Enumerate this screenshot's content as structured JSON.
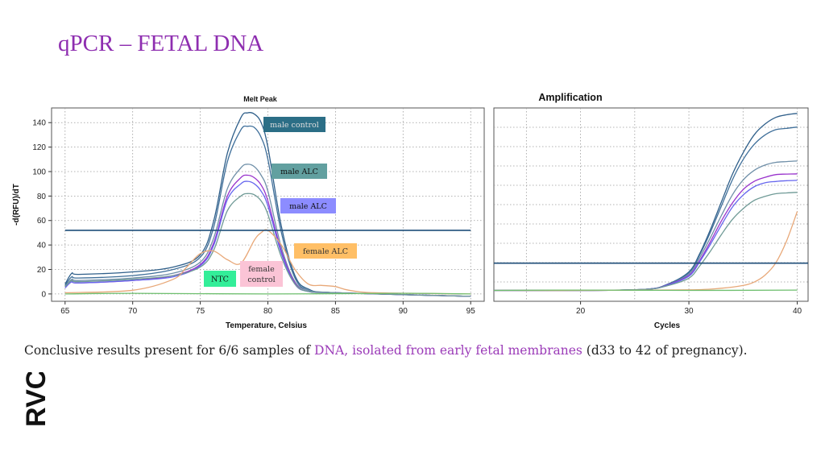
{
  "slide": {
    "title": "qPCR – FETAL DNA",
    "caption_pre": "Conclusive results present for 6/6 samples of ",
    "caption_highlight": "DNA, isolated from early fetal membranes",
    "caption_post": " (d33 to 42 of pregnancy).",
    "logo_text": "RVC",
    "accent_color": "#8e2eb0"
  },
  "chart_data": [
    {
      "type": "line",
      "title": "Melt Peak",
      "xlabel": "Temperature, Celsius",
      "ylabel": "-d(RFU)/dT",
      "xlim": [
        64,
        96
      ],
      "ylim": [
        -6,
        152
      ],
      "xticks": [
        65,
        70,
        75,
        80,
        85,
        90,
        95
      ],
      "yticks": [
        0,
        20,
        40,
        60,
        80,
        100,
        120,
        140
      ],
      "grid": true,
      "threshold": 52,
      "series": [
        {
          "color": "#2f5f8a",
          "x": [
            65,
            65.5,
            66,
            70,
            73,
            75,
            76,
            77,
            78,
            78.5,
            79,
            79.5,
            80,
            81,
            82,
            83,
            85,
            95
          ],
          "y": [
            8,
            17,
            16,
            18,
            22,
            32,
            60,
            115,
            144,
            148,
            147,
            140,
            120,
            55,
            15,
            4,
            1,
            -2
          ]
        },
        {
          "color": "#3f6f9a",
          "x": [
            65,
            65.5,
            66,
            70,
            73,
            75,
            76,
            77,
            78,
            78.5,
            79,
            79.5,
            80,
            81,
            82,
            83,
            85,
            95
          ],
          "y": [
            7,
            14,
            13,
            15,
            20,
            30,
            55,
            108,
            134,
            137,
            136,
            128,
            110,
            50,
            13,
            3,
            1,
            -2
          ]
        },
        {
          "color": "#6f8fa8",
          "x": [
            65,
            65.5,
            66,
            70,
            73,
            75,
            76,
            77,
            78,
            78.5,
            79,
            79.5,
            80,
            81,
            82,
            83,
            85,
            95
          ],
          "y": [
            6,
            12,
            11,
            13,
            17,
            26,
            46,
            86,
            103,
            106,
            104,
            97,
            84,
            38,
            10,
            3,
            1,
            -2
          ]
        },
        {
          "color": "#9933cc",
          "x": [
            65,
            65.5,
            66,
            70,
            73,
            75,
            76,
            77,
            78,
            78.5,
            79,
            79.5,
            80,
            81,
            82,
            83,
            85,
            95
          ],
          "y": [
            5,
            10,
            9,
            11,
            15,
            24,
            42,
            80,
            95,
            97,
            95,
            89,
            76,
            35,
            9,
            2,
            1,
            -2
          ]
        },
        {
          "color": "#6666ee",
          "x": [
            65,
            65.5,
            66,
            70,
            73,
            75,
            76,
            77,
            78,
            78.5,
            79,
            79.5,
            80,
            81,
            82,
            83,
            85,
            95
          ],
          "y": [
            5,
            10,
            9,
            11,
            14,
            23,
            40,
            77,
            90,
            92,
            90,
            84,
            72,
            33,
            8,
            2,
            1,
            -2
          ]
        },
        {
          "color": "#6f9a96",
          "x": [
            65,
            65.5,
            66,
            70,
            73,
            75,
            76,
            77,
            78,
            78.5,
            79,
            79.5,
            80,
            81,
            82,
            83,
            85,
            95
          ],
          "y": [
            6,
            11,
            10,
            12,
            15,
            22,
            36,
            68,
            80,
            82,
            81,
            76,
            65,
            30,
            8,
            2,
            1,
            -2
          ]
        },
        {
          "color": "#e8a878",
          "x": [
            65,
            70,
            73,
            74,
            75,
            76,
            77,
            78,
            79,
            79.5,
            80,
            81,
            82,
            83,
            84,
            85,
            86,
            88,
            95
          ],
          "y": [
            1,
            3,
            12,
            22,
            33,
            35,
            28,
            25,
            44,
            50,
            52,
            40,
            20,
            8,
            7,
            6,
            3,
            1,
            0
          ]
        },
        {
          "color": "#6fbf6f",
          "x": [
            65,
            70,
            80,
            90,
            95
          ],
          "y": [
            0,
            0.5,
            0,
            0.5,
            0
          ]
        }
      ],
      "annotations": [
        {
          "text": "male control",
          "bg": "#2b6e86",
          "fg": "#dddddd"
        },
        {
          "text": "male ALC",
          "bg": "#62a0a0",
          "fg": "#111111"
        },
        {
          "text": "male ALC",
          "bg": "#8c8cff",
          "fg": "#111111"
        },
        {
          "text": "female ALC",
          "bg": "#ffbf66",
          "fg": "#333333"
        },
        {
          "text": "female",
          "text2": "control",
          "bg": "#fbc4d6",
          "fg": "#333333"
        },
        {
          "text": "NTC",
          "bg": "#33ee99",
          "fg": "#111111"
        }
      ]
    },
    {
      "type": "line",
      "title": "Amplification",
      "xlabel": "Cycles",
      "ylabel": "",
      "xlim": [
        12,
        41
      ],
      "ylim": [
        -400,
        6700
      ],
      "xticks": [
        20,
        30,
        40
      ],
      "yticks": [],
      "grid": true,
      "threshold": 1000,
      "series": [
        {
          "color": "#2f5f8a",
          "x": [
            12,
            20,
            26,
            28,
            30,
            31,
            32,
            33,
            34,
            35,
            36,
            37,
            38,
            39,
            40
          ],
          "y": [
            0,
            0,
            40,
            220,
            680,
            1350,
            2250,
            3250,
            4250,
            5050,
            5700,
            6100,
            6350,
            6450,
            6500
          ]
        },
        {
          "color": "#3f6f9a",
          "x": [
            12,
            20,
            26,
            28,
            30,
            31,
            32,
            33,
            34,
            35,
            36,
            37,
            38,
            39,
            40
          ],
          "y": [
            0,
            0,
            40,
            220,
            650,
            1300,
            2150,
            3100,
            4050,
            4800,
            5350,
            5700,
            5900,
            5950,
            6000
          ]
        },
        {
          "color": "#6f8fa8",
          "x": [
            12,
            20,
            26,
            28,
            30,
            31,
            32,
            33,
            34,
            35,
            36,
            37,
            38,
            39,
            40
          ],
          "y": [
            0,
            0,
            40,
            200,
            600,
            1200,
            1950,
            2750,
            3500,
            4050,
            4400,
            4600,
            4700,
            4730,
            4750
          ]
        },
        {
          "color": "#9933cc",
          "x": [
            12,
            20,
            26,
            28,
            30,
            31,
            32,
            33,
            34,
            35,
            36,
            37,
            38,
            39,
            40
          ],
          "y": [
            0,
            0,
            40,
            200,
            550,
            1100,
            1800,
            2550,
            3200,
            3700,
            4000,
            4150,
            4250,
            4270,
            4280
          ]
        },
        {
          "color": "#6666ee",
          "x": [
            12,
            20,
            26,
            28,
            30,
            31,
            32,
            33,
            34,
            35,
            36,
            37,
            38,
            39,
            40
          ],
          "y": [
            0,
            0,
            40,
            190,
            520,
            1050,
            1700,
            2400,
            3050,
            3500,
            3800,
            3950,
            4000,
            4030,
            4040
          ]
        },
        {
          "color": "#6f9a96",
          "x": [
            12,
            20,
            26,
            28,
            30,
            31,
            32,
            33,
            34,
            35,
            36,
            37,
            38,
            39,
            40
          ],
          "y": [
            0,
            0,
            40,
            170,
            450,
            900,
            1450,
            2050,
            2600,
            3000,
            3300,
            3450,
            3550,
            3580,
            3600
          ]
        },
        {
          "color": "#e8a878",
          "x": [
            12,
            20,
            30,
            33,
            35,
            36,
            37,
            38,
            39,
            40
          ],
          "y": [
            0,
            0,
            20,
            80,
            180,
            300,
            550,
            1000,
            1800,
            2900
          ]
        },
        {
          "color": "#6fbf6f",
          "x": [
            12,
            20,
            30,
            40
          ],
          "y": [
            0,
            10,
            0,
            10
          ]
        }
      ]
    }
  ]
}
